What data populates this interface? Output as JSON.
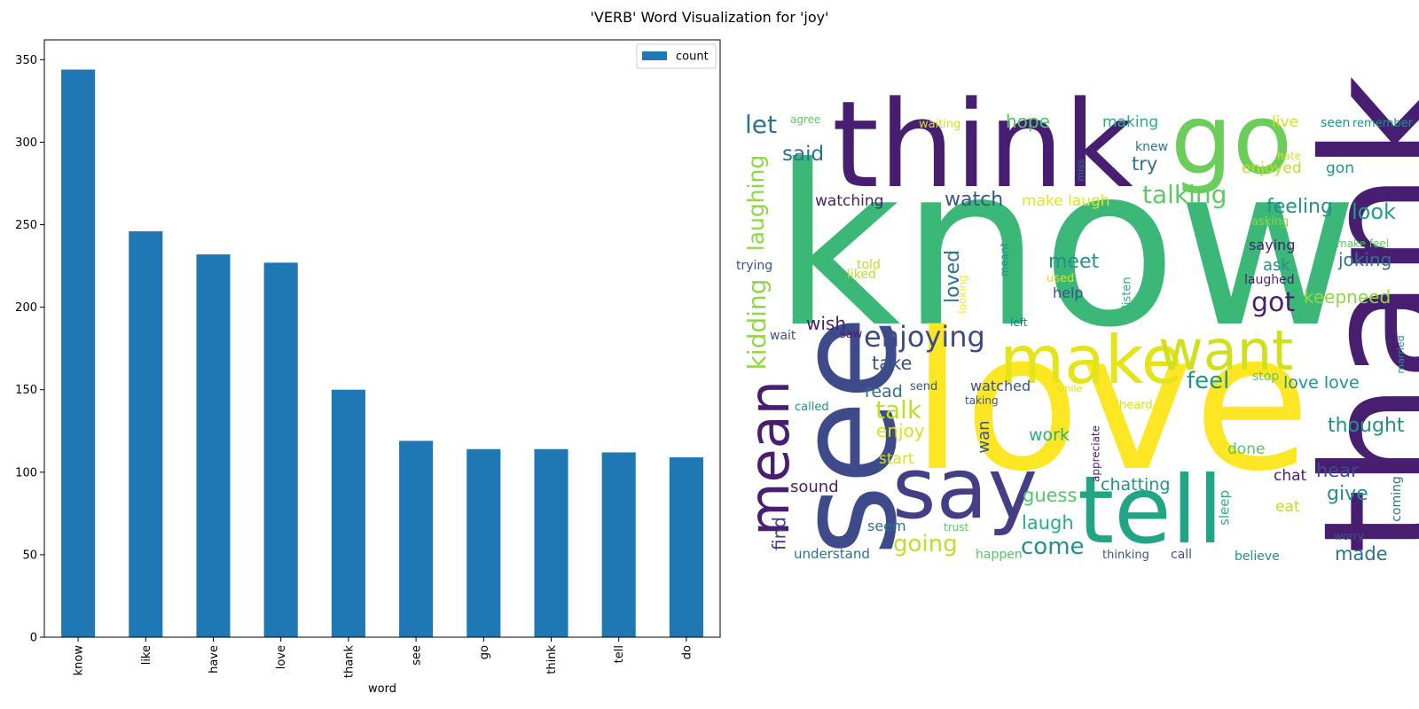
{
  "figure": {
    "title": "'VERB' Word Visualization for 'joy'"
  },
  "chart_data": {
    "type": "bar",
    "xlabel": "word",
    "ylabel": "",
    "categories": [
      "know",
      "like",
      "have",
      "love",
      "thank",
      "see",
      "go",
      "think",
      "tell",
      "do"
    ],
    "series": [
      {
        "name": "count",
        "values": [
          344,
          246,
          232,
          227,
          150,
          119,
          114,
          114,
          112,
          109
        ],
        "color": "#1f77b4"
      }
    ],
    "ylim": [
      0,
      362
    ],
    "yticks": [
      0,
      50,
      100,
      150,
      200,
      250,
      300,
      350
    ],
    "legend": "top-right",
    "grid": false
  },
  "wordcloud": {
    "words": [
      {
        "text": "know",
        "color": "#3bb877"
      },
      {
        "text": "love",
        "color": "#fde725"
      },
      {
        "text": "thank",
        "color": "#481f70"
      },
      {
        "text": "think",
        "color": "#481f70"
      },
      {
        "text": "see",
        "color": "#3e4a89"
      },
      {
        "text": "go",
        "color": "#6ccd5a"
      },
      {
        "text": "tell",
        "color": "#21a585"
      },
      {
        "text": "say",
        "color": "#433e85"
      },
      {
        "text": "make",
        "color": "#e5e419"
      },
      {
        "text": "want",
        "color": "#d0e11c"
      },
      {
        "text": "mean",
        "color": "#481f70"
      },
      {
        "text": "talking",
        "color": "#5ec962"
      },
      {
        "text": "enjoying",
        "color": "#3e4989"
      },
      {
        "text": "kidding",
        "color": "#8fd744"
      },
      {
        "text": "laughing",
        "color": "#8fd744"
      },
      {
        "text": "let",
        "color": "#2c728e"
      },
      {
        "text": "said",
        "color": "#2c728e"
      },
      {
        "text": "watching",
        "color": "#481f70"
      },
      {
        "text": "watch",
        "color": "#3b528b"
      },
      {
        "text": "hope",
        "color": "#54c568"
      },
      {
        "text": "making",
        "color": "#29af7f"
      },
      {
        "text": "try",
        "color": "#2c728e"
      },
      {
        "text": "knew",
        "color": "#2c728e"
      },
      {
        "text": "make laugh",
        "color": "#e5e419"
      },
      {
        "text": "live",
        "color": "#d8e219"
      },
      {
        "text": "seen",
        "color": "#21918c"
      },
      {
        "text": "remember",
        "color": "#21918c"
      },
      {
        "text": "agree",
        "color": "#5ec962"
      },
      {
        "text": "waiting",
        "color": "#d0e11c"
      },
      {
        "text": "enjoyed",
        "color": "#bddf26"
      },
      {
        "text": "gon",
        "color": "#1f988b"
      },
      {
        "text": "hate",
        "color": "#d8e219"
      },
      {
        "text": "miss",
        "color": "#2c728e"
      },
      {
        "text": "feeling",
        "color": "#21918c"
      },
      {
        "text": "look",
        "color": "#1f9e89"
      },
      {
        "text": "asking",
        "color": "#8fd744"
      },
      {
        "text": "meet",
        "color": "#21918c"
      },
      {
        "text": "loved",
        "color": "#2c728e"
      },
      {
        "text": "saying",
        "color": "#481f70"
      },
      {
        "text": "make feel",
        "color": "#5ec962"
      },
      {
        "text": "joking",
        "color": "#2c728e"
      },
      {
        "text": "ask",
        "color": "#21918c"
      },
      {
        "text": "laughed",
        "color": "#481f70"
      },
      {
        "text": "trying",
        "color": "#3b528b"
      },
      {
        "text": "told",
        "color": "#bddf26"
      },
      {
        "text": "liked",
        "color": "#bddf26"
      },
      {
        "text": "meant",
        "color": "#21918c"
      },
      {
        "text": "looking",
        "color": "#fde725"
      },
      {
        "text": "used",
        "color": "#d8e219"
      },
      {
        "text": "help",
        "color": "#3b528b"
      },
      {
        "text": "listen",
        "color": "#29af7f"
      },
      {
        "text": "got",
        "color": "#481f70"
      },
      {
        "text": "keepneed",
        "color": "#8fd744"
      },
      {
        "text": "wish",
        "color": "#481f70"
      },
      {
        "text": "wait",
        "color": "#3b528b"
      },
      {
        "text": "saw",
        "color": "#481f70"
      },
      {
        "text": "left",
        "color": "#2c728e"
      },
      {
        "text": "take",
        "color": "#3b528b"
      },
      {
        "text": "feel",
        "color": "#21918c"
      },
      {
        "text": "stop",
        "color": "#5ec962"
      },
      {
        "text": "love love",
        "color": "#21918c"
      },
      {
        "text": "married",
        "color": "#21918c"
      },
      {
        "text": "read",
        "color": "#2c728e"
      },
      {
        "text": "send",
        "color": "#3b528b"
      },
      {
        "text": "watched",
        "color": "#3b528b"
      },
      {
        "text": "smile",
        "color": "#d8e219"
      },
      {
        "text": "taking",
        "color": "#3b528b"
      },
      {
        "text": "called",
        "color": "#21918c"
      },
      {
        "text": "heard",
        "color": "#d8e219"
      },
      {
        "text": "talk",
        "color": "#bddf26"
      },
      {
        "text": "enjoy",
        "color": "#d8e219"
      },
      {
        "text": "wan",
        "color": "#3b528b"
      },
      {
        "text": "work",
        "color": "#29af7f"
      },
      {
        "text": "appreciate",
        "color": "#481f70"
      },
      {
        "text": "thought",
        "color": "#21918c"
      },
      {
        "text": "start",
        "color": "#d8e219"
      },
      {
        "text": "done",
        "color": "#54c568"
      },
      {
        "text": "chat",
        "color": "#481f70"
      },
      {
        "text": "hear",
        "color": "#3e4a89"
      },
      {
        "text": "chatting",
        "color": "#21918c"
      },
      {
        "text": "sound",
        "color": "#481f70"
      },
      {
        "text": "guess",
        "color": "#54c568"
      },
      {
        "text": "give",
        "color": "#21918c"
      },
      {
        "text": "sleep",
        "color": "#29af7f"
      },
      {
        "text": "coming",
        "color": "#2c728e"
      },
      {
        "text": "laugh",
        "color": "#29af7f"
      },
      {
        "text": "eat",
        "color": "#bddf26"
      },
      {
        "text": "find",
        "color": "#433e85"
      },
      {
        "text": "seem",
        "color": "#2c728e"
      },
      {
        "text": "trust",
        "color": "#5ec962"
      },
      {
        "text": "going",
        "color": "#bddf26"
      },
      {
        "text": "come",
        "color": "#21918c"
      },
      {
        "text": "worry",
        "color": "#3b528b"
      },
      {
        "text": "made",
        "color": "#2c728e"
      },
      {
        "text": "understand",
        "color": "#2c728e"
      },
      {
        "text": "happen",
        "color": "#54c568"
      },
      {
        "text": "thinking",
        "color": "#3b528b"
      },
      {
        "text": "call",
        "color": "#3b528b"
      },
      {
        "text": "believe",
        "color": "#21918c"
      }
    ]
  }
}
